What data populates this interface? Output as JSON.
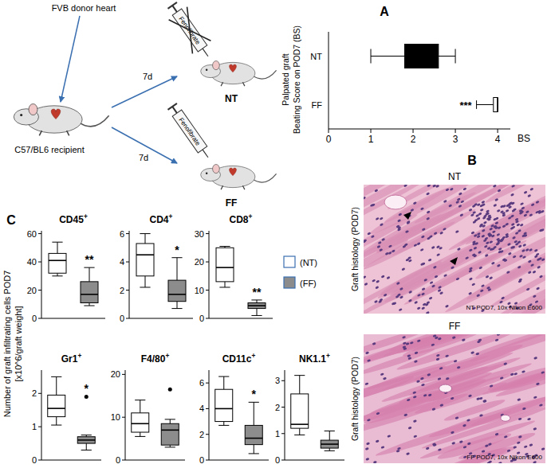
{
  "diagram": {
    "donor": "FVB donor heart",
    "recipient": "C57/BL6 recipient",
    "drug_labels": [
      "Fenofibrate",
      "Fenofibrate"
    ],
    "durations": [
      "7d",
      "7d"
    ],
    "groups": [
      "NT",
      "FF"
    ]
  },
  "histology": {
    "label": "B",
    "panels": [
      {
        "title": "NT",
        "y_label": "Graft histology (POD7)",
        "caption": "NT POD7, 10x Nikon E600"
      },
      {
        "title": "FF",
        "y_label": "Graft histology (POD7)",
        "caption": "FF POD7, 10x Nikon E600"
      }
    ]
  },
  "panel_c": {
    "label": "C",
    "y_label": [
      "Number of graft infiltrating cells POD7",
      "[x10^6/graft weight]"
    ],
    "legend_entries": [
      {
        "name": "(NT)",
        "color": "#ffffff"
      },
      {
        "name": "(FF)",
        "color": "#8c8c8c"
      }
    ]
  },
  "chart_data": [
    {
      "type": "box",
      "title": "A",
      "orientation": "horizontal",
      "y_label": [
        "Palpated graft",
        "Beating Score on POD7 (BS)"
      ],
      "x_label": "BS",
      "categories": [
        "NT",
        "FF"
      ],
      "colors": [
        "#000000",
        "#ffffff"
      ],
      "boxes": [
        {
          "low": 1,
          "q1": 1.8,
          "median": 2.1,
          "q3": 2.6,
          "high": 3
        },
        {
          "low": 3.5,
          "q1": 3.9,
          "median": 4,
          "q3": 4,
          "high": 4
        }
      ],
      "annotations": [
        null,
        "***"
      ],
      "xlim": [
        0,
        4.3
      ],
      "xticks": [
        0,
        1,
        2,
        3,
        4
      ]
    },
    {
      "type": "box",
      "title": "CD45+",
      "tick_labels": "y",
      "colors": [
        "#ffffff",
        "#8c8c8c"
      ],
      "boxes": [
        {
          "low": 30,
          "q1": 32,
          "median": 41,
          "q3": 46,
          "high": 54
        },
        {
          "low": 9,
          "q1": 11,
          "median": 17,
          "q3": 26,
          "high": 36
        }
      ],
      "annotations": [
        null,
        "**"
      ],
      "ylim": [
        0,
        62
      ],
      "yticks": [
        0,
        20,
        40,
        60
      ]
    },
    {
      "type": "box",
      "title": "CD4+",
      "tick_labels": "y",
      "colors": [
        "#ffffff",
        "#8c8c8c"
      ],
      "boxes": [
        {
          "low": 2.2,
          "q1": 3.0,
          "median": 4.5,
          "q3": 5.3,
          "high": 6
        },
        {
          "low": 0.7,
          "q1": 1.2,
          "median": 1.7,
          "q3": 2.7,
          "high": 4.3
        }
      ],
      "annotations": [
        null,
        "*"
      ],
      "ylim": [
        0,
        6.2
      ],
      "yticks": [
        0,
        2,
        4,
        6
      ]
    },
    {
      "type": "box",
      "title": "CD8+",
      "tick_labels": "y",
      "colors": [
        "#ffffff",
        "#8c8c8c"
      ],
      "boxes": [
        {
          "low": 11,
          "q1": 13,
          "median": 18,
          "q3": 25,
          "high": 25.5
        },
        {
          "low": 1,
          "q1": 3.5,
          "median": 4.5,
          "q3": 5.5,
          "high": 6.5
        }
      ],
      "annotations": [
        null,
        "**"
      ],
      "ylim": [
        0,
        31
      ],
      "yticks": [
        0,
        10,
        20,
        30
      ]
    },
    {
      "type": "box",
      "title": "Gr1+",
      "tick_labels": "y",
      "colors": [
        "#ffffff",
        "#8c8c8c"
      ],
      "boxes": [
        {
          "low": 1.05,
          "q1": 1.3,
          "median": 1.55,
          "q3": 1.95,
          "high": 2.5
        },
        {
          "low": 0.3,
          "q1": 0.5,
          "median": 0.6,
          "q3": 0.7,
          "high": 0.75
        }
      ],
      "outliers": [
        [],
        [
          1.9
        ]
      ],
      "annotations": [
        null,
        "*"
      ],
      "ylim": [
        0,
        2.7
      ],
      "yticks": [
        0,
        1,
        2
      ]
    },
    {
      "type": "box",
      "title": "F4/80+",
      "tick_labels": "y",
      "colors": [
        "#ffffff",
        "#8c8c8c"
      ],
      "boxes": [
        {
          "low": 5.5,
          "q1": 6.5,
          "median": 8.5,
          "q3": 11,
          "high": 14
        },
        {
          "low": 3,
          "q1": 3.5,
          "median": 7,
          "q3": 8.5,
          "high": 9.5
        }
      ],
      "outliers": [
        [],
        [
          16.5
        ]
      ],
      "ylim": [
        0,
        21
      ],
      "yticks": [
        0,
        10,
        20
      ]
    },
    {
      "type": "box",
      "title": "CD11c+",
      "tick_labels": "y",
      "colors": [
        "#ffffff",
        "#8c8c8c"
      ],
      "boxes": [
        {
          "low": 2.7,
          "q1": 3.0,
          "median": 4.0,
          "q3": 5.5,
          "high": 6.5
        },
        {
          "low": 0.5,
          "q1": 1.2,
          "median": 1.7,
          "q3": 2.7,
          "high": 4.5
        }
      ],
      "annotations": [
        null,
        "*"
      ],
      "ylim": [
        0,
        7
      ],
      "yticks": [
        0,
        2,
        4,
        6
      ]
    },
    {
      "type": "box",
      "title": "NK1.1+",
      "tick_labels": "y",
      "colors": [
        "#ffffff",
        "#8c8c8c"
      ],
      "boxes": [
        {
          "low": 0.95,
          "q1": 1.2,
          "median": 1.35,
          "q3": 2.5,
          "high": 3.2
        },
        {
          "low": 0.35,
          "q1": 0.45,
          "median": 0.6,
          "q3": 0.75,
          "high": 1.1
        }
      ],
      "ylim": [
        0,
        3.4
      ],
      "yticks": [
        0,
        1,
        2,
        3
      ]
    }
  ]
}
